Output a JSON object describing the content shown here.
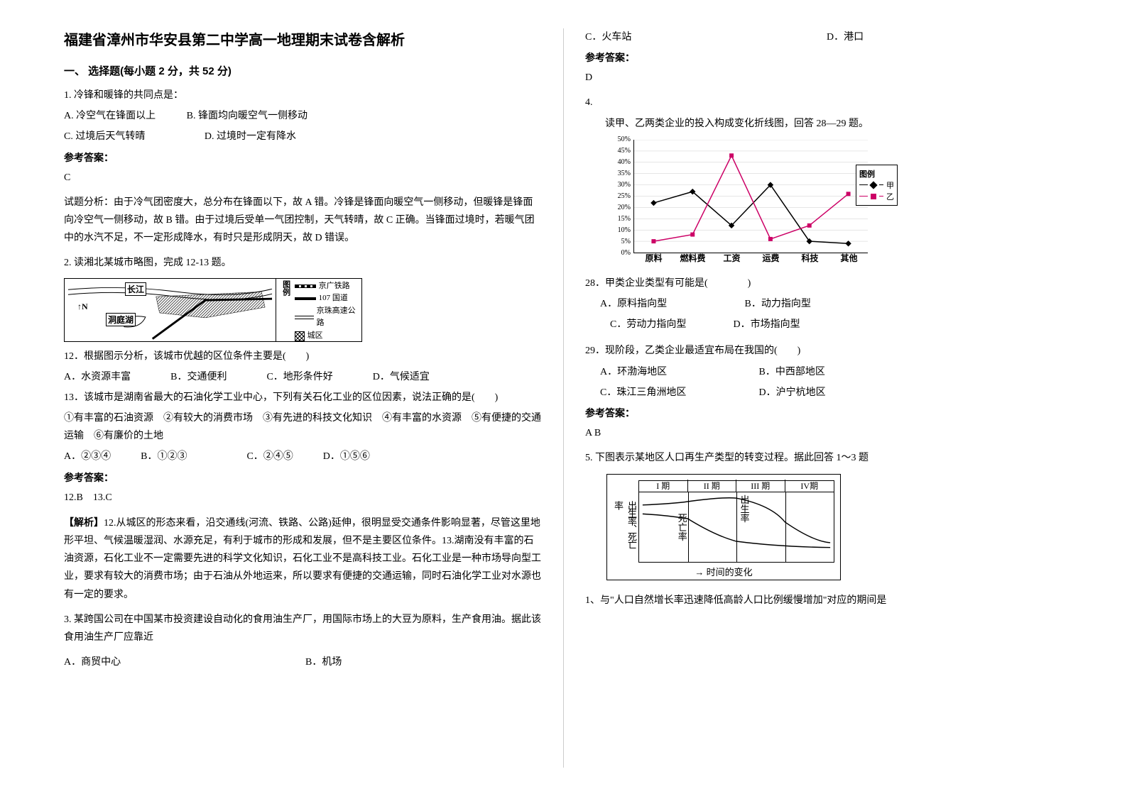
{
  "title": "福建省漳州市华安县第二中学高一地理期末试卷含解析",
  "section1_title": "一、 选择题(每小题 2 分，共 52 分)",
  "q1": {
    "stem": "1. 冷锋和暖锋的共同点是：",
    "optA": "A. 冷空气在锋面以上",
    "optB": "B. 锋面均向暖空气一侧移动",
    "optC": "C. 过境后天气转晴",
    "optD": "D. 过境时一定有降水",
    "answer_label": "参考答案：",
    "answer": "C",
    "analysis": "试题分析：由于冷气团密度大，总分布在锋面以下，故 A 错。冷锋是锋面向暖空气一侧移动，但暖锋是锋面向冷空气一侧移动，故 B 错。由于过境后受单一气团控制，天气转晴，故 C 正确。当锋面过境时，若暖气团中的水汽不足，不一定形成降水，有时只是形成阴天，故 D 错误。"
  },
  "q2": {
    "stem": "2. 读湘北某城市略图，完成 12-13 题。",
    "map": {
      "changjiang": "长江",
      "dongting": "洞庭湖",
      "north": "N",
      "legend_title": "图\n例",
      "legend_railway": "京广铁路",
      "legend_road": "107 国道",
      "legend_highway": "京珠高速公路",
      "legend_city": "城区"
    },
    "q12": "12．根据图示分析，该城市优越的区位条件主要是(　　)",
    "q12_opts": "A．水资源丰富　　　　B．交通便利　　　　C．地形条件好　　　　D．气候适宜",
    "q13": "13．该城市是湖南省最大的石油化学工业中心，下列有关石化工业的区位因素，说法正确的是(　　)",
    "q13_items": "①有丰富的石油资源　②有较大的消费市场　③有先进的科技文化知识　④有丰富的水资源　⑤有便捷的交通运输　⑥有廉价的土地",
    "q13_opts": "A．②③④　　　B．①②③　　　　　　C．②④⑤　　　D．①⑤⑥",
    "answer_label": "参考答案：",
    "answer": "12.B　13.C",
    "analysis_label": "【解析】",
    "analysis": "12.从城区的形态来看，沿交通线(河流、铁路、公路)延伸，很明显受交通条件影响显著，尽管这里地形平坦、气候温暖湿润、水源充足，有利于城市的形成和发展，但不是主要区位条件。13.湖南没有丰富的石油资源，石化工业不一定需要先进的科学文化知识，石化工业不是高科技工业。石化工业是一种市场导向型工业，要求有较大的消费市场；由于石油从外地运来，所以要求有便捷的交通运输，同时石油化学工业对水源也有一定的要求。"
  },
  "q3": {
    "stem": "3. 某跨国公司在中国某市投资建设自动化的食用油生产厂，用国际市场上的大豆为原料，生产食用油。据此该食用油生产厂应靠近",
    "optA": "A．商贸中心",
    "optB": "B．机场",
    "optC": "C．火车站",
    "optD": "D．港口",
    "answer_label": "参考答案：",
    "answer": "D"
  },
  "q4": {
    "num": "4.",
    "stem": "读甲、乙两类企业的投入构成变化折线图，回答 28—29 题。",
    "chart": {
      "y_labels": [
        "50%",
        "45%",
        "40%",
        "35%",
        "30%",
        "25%",
        "20%",
        "15%",
        "10%",
        "5%",
        "0%"
      ],
      "y_positions": [
        0,
        10,
        20,
        30,
        40,
        50,
        60,
        70,
        80,
        90,
        100
      ],
      "x_labels": [
        "原料",
        "燃料费",
        "工资",
        "运费",
        "科技",
        "其他"
      ],
      "legend_title": "图例",
      "legend_a": "甲",
      "legend_b": "乙",
      "series_a": [
        22,
        27,
        12,
        30,
        5,
        4
      ],
      "series_b": [
        5,
        8,
        43,
        6,
        12,
        26
      ],
      "color_a": "#000000",
      "color_b": "#cc0066"
    },
    "q28": "28．甲类企业类型有可能是(　　　　)",
    "q28_optA": "A．原料指向型",
    "q28_optB": "B．动力指向型",
    "q28_optC": "C．劳动力指向型",
    "q28_optD": "D．市场指向型",
    "q29": "29．现阶段，乙类企业最适宜布局在我国的(　　)",
    "q29_optA": "A．环渤海地区",
    "q29_optB": "B．中西部地区",
    "q29_optC": "C．珠江三角洲地区",
    "q29_optD": "D．沪宁杭地区",
    "answer_label": "参考答案：",
    "answer": "A  B"
  },
  "q5": {
    "stem": "5. 下图表示某地区人口再生产类型的转变过程。据此回答 1～3 题",
    "chart": {
      "periods": [
        "I 期",
        "II 期",
        "III 期",
        "IV期"
      ],
      "ylabel": "出生率、死亡率",
      "xlabel": "→ 时间的变化",
      "annot_birth": "出\n生\n率",
      "annot_death": "死\n亡\n率"
    },
    "subq1": "1、与\"人口自然增长率迅速降低高龄人口比例缓慢增加\"对应的期间是"
  }
}
